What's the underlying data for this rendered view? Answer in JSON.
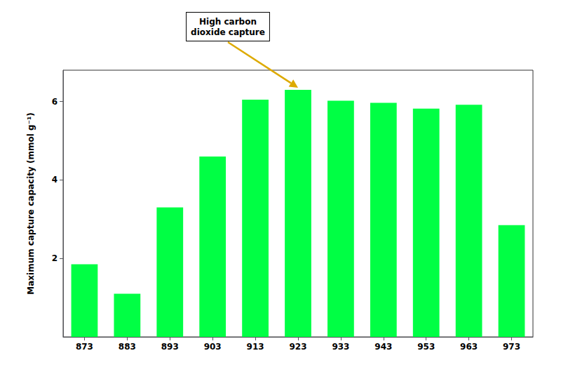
{
  "chart_data": {
    "type": "bar",
    "categories": [
      "873",
      "883",
      "893",
      "903",
      "913",
      "923",
      "933",
      "943",
      "953",
      "963",
      "973"
    ],
    "values": [
      1.85,
      1.1,
      3.3,
      4.6,
      6.05,
      6.3,
      6.02,
      5.97,
      5.82,
      5.92,
      2.85
    ],
    "color": "#00ff44",
    "ylabel": "Maximum capture capacity (mmol g⁻¹)",
    "ylim": [
      0,
      6.8
    ],
    "yticks": [
      2,
      4,
      6
    ],
    "grid": false,
    "annotations": [
      {
        "text": "High carbon\ndioxide capture",
        "x": "923",
        "y": 6.3,
        "color": "#ddaa00"
      }
    ]
  }
}
